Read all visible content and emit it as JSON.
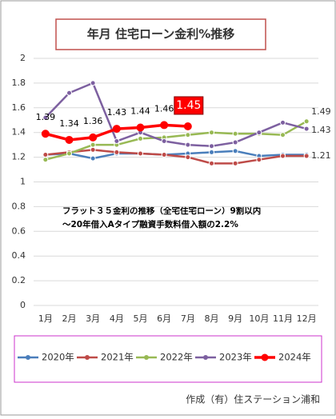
{
  "chart_data": {
    "type": "line",
    "title": "年月 住宅ローン金利%推移",
    "annotations": [
      "フラット３５金利の推移（全宅住宅ローン）9割以内",
      "～20年借入Aタイプ融資手数料借入額の2.2%"
    ],
    "footer": "作成（有）住ステーション浦和",
    "categories": [
      "1月",
      "2月",
      "3月",
      "4月",
      "5月",
      "6月",
      "7月",
      "8月",
      "9月",
      "10月",
      "11月",
      "12月"
    ],
    "ylim": [
      0,
      2
    ],
    "yticks": [
      0,
      0.2,
      0.4,
      0.6,
      0.8,
      1,
      1.2,
      1.4,
      1.6,
      1.8,
      2
    ],
    "grid": true,
    "legend": "bottom",
    "series": [
      {
        "name": "2020年",
        "color": "#4a7ebb",
        "values": [
          1.22,
          1.23,
          1.19,
          1.23,
          1.23,
          1.22,
          1.23,
          1.24,
          1.25,
          1.21,
          1.22,
          1.22
        ]
      },
      {
        "name": "2021年",
        "color": "#be4b48",
        "values": [
          1.22,
          1.24,
          1.26,
          1.24,
          1.23,
          1.22,
          1.2,
          1.15,
          1.15,
          1.18,
          1.21,
          1.21
        ],
        "label_last": true
      },
      {
        "name": "2022年",
        "color": "#98b954",
        "values": [
          1.18,
          1.23,
          1.3,
          1.3,
          1.35,
          1.36,
          1.38,
          1.4,
          1.39,
          1.39,
          1.38,
          1.49
        ],
        "label_last": true
      },
      {
        "name": "2023年",
        "color": "#7d60a0",
        "values": [
          1.52,
          1.72,
          1.8,
          1.33,
          1.4,
          1.33,
          1.3,
          1.29,
          1.32,
          1.4,
          1.48,
          1.43
        ],
        "label_last": true
      },
      {
        "name": "2024年",
        "color": "#ff0000",
        "values": [
          1.39,
          1.34,
          1.36,
          1.43,
          1.44,
          1.46,
          1.45,
          null,
          null,
          null,
          null,
          null
        ],
        "label_all": true,
        "bold": true,
        "highlight_last": true
      }
    ]
  }
}
